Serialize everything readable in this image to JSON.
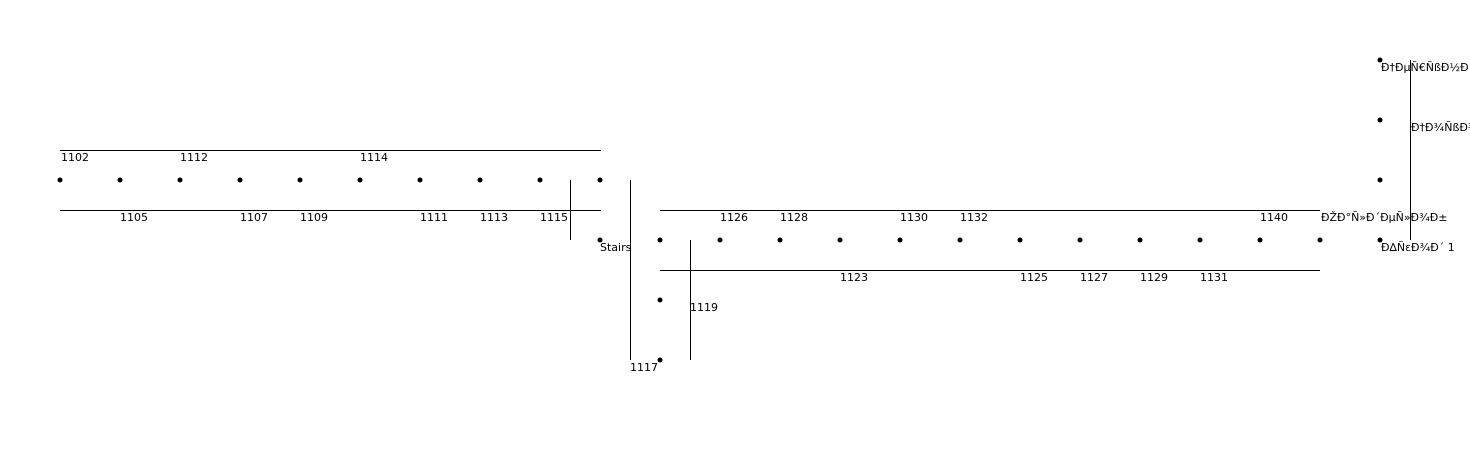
{
  "colors": {
    "background": "#ffffff",
    "ink": "#000000"
  },
  "labels": {
    "room_1102": "1102",
    "room_1112": "1112",
    "room_1114": "1114",
    "room_1105": "1105",
    "room_1107": "1107",
    "room_1109": "1109",
    "room_1111": "1111",
    "room_1113": "1113",
    "room_1115": "1115",
    "stairs": "Stairs",
    "room_1117": "1117",
    "room_1119": "1119",
    "room_1126": "1126",
    "room_1128": "1128",
    "room_1130": "1130",
    "room_1132": "1132",
    "room_1140": "1140",
    "room_1123": "1123",
    "room_1125": "1125",
    "room_1127": "1127",
    "room_1129": "1129",
    "room_1131": "1131",
    "garbled_top": "Ð†ÐµÑ€ÑßÐ½Ð¸Ñ",
    "garbled_mid": "Ð†Ð¾ÑßÐ¾",
    "garbled_right_1": "ÐŽÐ°Ñ»Ð´ÐµÑ»Ð¾Ð±",
    "garbled_right_2": "Ð∆ÑεÐ¾Ð´ 1"
  }
}
